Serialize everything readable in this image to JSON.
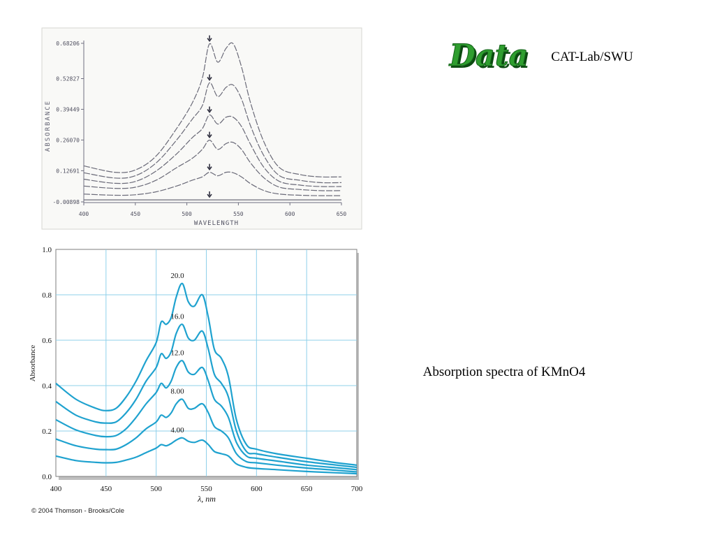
{
  "slide": {
    "logo_text": "Data",
    "header": "CAT-Lab/SWU",
    "caption": "Absorption spectra of KMnO4",
    "copyright": "© 2004 Thomson - Brooks/Cole",
    "logo_color": "#2f9e2f"
  },
  "chart_data": [
    {
      "type": "line",
      "title": "",
      "xlabel": "WAVELENGTH",
      "ylabel": "ABSORBANCE",
      "xlim": [
        400,
        650
      ],
      "ylim": [
        -0.00898,
        0.68206
      ],
      "x_ticks": [
        "400",
        "450",
        "500",
        "550",
        "600",
        "650"
      ],
      "y_ticks": [
        "-0.00898",
        "0.12691",
        "0.26070",
        "0.39449",
        "0.52827",
        "0.68206"
      ],
      "peak_marker_x": 522,
      "grid": false,
      "line_color": "#6a6a78",
      "series": [
        {
          "x": [
            400,
            430,
            450,
            470,
            490,
            505,
            515,
            522,
            530,
            538,
            545,
            553,
            562,
            575,
            590,
            610,
            630,
            650
          ],
          "values": [
            0.148,
            0.12,
            0.13,
            0.19,
            0.31,
            0.42,
            0.53,
            0.68,
            0.6,
            0.66,
            0.68,
            0.58,
            0.42,
            0.25,
            0.14,
            0.11,
            0.1,
            0.1
          ]
        },
        {
          "x": [
            400,
            430,
            450,
            470,
            490,
            505,
            515,
            522,
            530,
            538,
            545,
            553,
            562,
            575,
            590,
            610,
            630,
            650
          ],
          "values": [
            0.118,
            0.095,
            0.105,
            0.16,
            0.26,
            0.35,
            0.41,
            0.51,
            0.45,
            0.49,
            0.5,
            0.44,
            0.32,
            0.19,
            0.105,
            0.085,
            0.075,
            0.075
          ]
        },
        {
          "x": [
            400,
            430,
            450,
            470,
            490,
            505,
            515,
            522,
            530,
            538,
            545,
            553,
            562,
            575,
            590,
            610,
            630,
            650
          ],
          "values": [
            0.09,
            0.072,
            0.08,
            0.125,
            0.2,
            0.27,
            0.31,
            0.37,
            0.33,
            0.36,
            0.36,
            0.32,
            0.24,
            0.14,
            0.08,
            0.064,
            0.058,
            0.058
          ]
        },
        {
          "x": [
            400,
            430,
            450,
            470,
            490,
            505,
            515,
            522,
            530,
            538,
            545,
            553,
            562,
            575,
            590,
            610,
            630,
            650
          ],
          "values": [
            0.06,
            0.05,
            0.055,
            0.085,
            0.14,
            0.18,
            0.22,
            0.26,
            0.22,
            0.245,
            0.25,
            0.22,
            0.16,
            0.095,
            0.055,
            0.045,
            0.04,
            0.04
          ]
        },
        {
          "x": [
            400,
            430,
            450,
            470,
            490,
            505,
            515,
            522,
            530,
            538,
            545,
            553,
            562,
            575,
            590,
            610,
            630,
            650
          ],
          "values": [
            0.025,
            0.02,
            0.022,
            0.035,
            0.06,
            0.085,
            0.1,
            0.12,
            0.105,
            0.12,
            0.118,
            0.1,
            0.07,
            0.04,
            0.025,
            0.02,
            0.018,
            0.018
          ]
        },
        {
          "x": [
            400,
            450,
            500,
            550,
            600,
            650
          ],
          "values": [
            -0.0,
            -0.0,
            -0.0,
            -0.0,
            -0.0,
            -0.0
          ]
        }
      ]
    },
    {
      "type": "line",
      "title": "",
      "xlabel": "λ, nm",
      "ylabel": "Absorbance",
      "xlim": [
        400,
        700
      ],
      "ylim": [
        0,
        1.0
      ],
      "x_ticks": [
        "400",
        "450",
        "500",
        "550",
        "600",
        "650",
        "700"
      ],
      "y_ticks": [
        "0.0",
        "0.2",
        "0.4",
        "0.6",
        "0.8",
        "1.0"
      ],
      "grid": true,
      "line_color": "#1fa2cf",
      "grid_color": "#8fd0ea",
      "series": [
        {
          "label": "20.0",
          "x": [
            400,
            420,
            440,
            450,
            460,
            470,
            480,
            490,
            500,
            505,
            510,
            515,
            520,
            526,
            532,
            538,
            546,
            552,
            558,
            565,
            572,
            580,
            590,
            600,
            620,
            650,
            680,
            700
          ],
          "values": [
            0.41,
            0.34,
            0.3,
            0.29,
            0.3,
            0.35,
            0.42,
            0.51,
            0.59,
            0.68,
            0.67,
            0.7,
            0.79,
            0.85,
            0.77,
            0.75,
            0.8,
            0.7,
            0.56,
            0.52,
            0.44,
            0.25,
            0.14,
            0.12,
            0.1,
            0.08,
            0.06,
            0.05
          ]
        },
        {
          "label": "16.0",
          "x": [
            400,
            420,
            440,
            450,
            460,
            470,
            480,
            490,
            500,
            505,
            510,
            515,
            520,
            526,
            532,
            538,
            546,
            552,
            558,
            565,
            572,
            580,
            590,
            600,
            620,
            650,
            680,
            700
          ],
          "values": [
            0.33,
            0.27,
            0.24,
            0.235,
            0.24,
            0.28,
            0.34,
            0.42,
            0.48,
            0.54,
            0.52,
            0.55,
            0.63,
            0.67,
            0.61,
            0.6,
            0.64,
            0.56,
            0.45,
            0.41,
            0.35,
            0.2,
            0.11,
            0.1,
            0.085,
            0.065,
            0.05,
            0.04
          ]
        },
        {
          "label": "12.0",
          "x": [
            400,
            420,
            440,
            450,
            460,
            470,
            480,
            490,
            500,
            505,
            510,
            515,
            520,
            526,
            532,
            538,
            546,
            552,
            558,
            565,
            572,
            580,
            590,
            600,
            620,
            650,
            680,
            700
          ],
          "values": [
            0.25,
            0.205,
            0.18,
            0.175,
            0.18,
            0.21,
            0.26,
            0.32,
            0.37,
            0.41,
            0.39,
            0.42,
            0.48,
            0.51,
            0.46,
            0.45,
            0.48,
            0.42,
            0.34,
            0.31,
            0.26,
            0.15,
            0.09,
            0.08,
            0.068,
            0.05,
            0.038,
            0.03
          ]
        },
        {
          "label": "8.00",
          "x": [
            400,
            420,
            440,
            450,
            460,
            470,
            480,
            490,
            500,
            505,
            510,
            515,
            520,
            526,
            532,
            538,
            546,
            552,
            558,
            565,
            572,
            580,
            590,
            600,
            620,
            650,
            680,
            700
          ],
          "values": [
            0.165,
            0.135,
            0.12,
            0.118,
            0.12,
            0.14,
            0.17,
            0.21,
            0.24,
            0.27,
            0.26,
            0.28,
            0.32,
            0.34,
            0.3,
            0.3,
            0.32,
            0.28,
            0.22,
            0.2,
            0.17,
            0.1,
            0.065,
            0.06,
            0.05,
            0.037,
            0.027,
            0.02
          ]
        },
        {
          "label": "4.00",
          "x": [
            400,
            420,
            440,
            450,
            460,
            470,
            480,
            490,
            500,
            505,
            510,
            515,
            520,
            526,
            532,
            538,
            546,
            552,
            558,
            565,
            572,
            580,
            590,
            600,
            620,
            650,
            680,
            700
          ],
          "values": [
            0.09,
            0.07,
            0.062,
            0.06,
            0.062,
            0.072,
            0.085,
            0.105,
            0.125,
            0.14,
            0.135,
            0.145,
            0.16,
            0.17,
            0.155,
            0.15,
            0.16,
            0.14,
            0.11,
            0.1,
            0.09,
            0.055,
            0.04,
            0.035,
            0.03,
            0.022,
            0.016,
            0.012
          ]
        }
      ]
    }
  ]
}
